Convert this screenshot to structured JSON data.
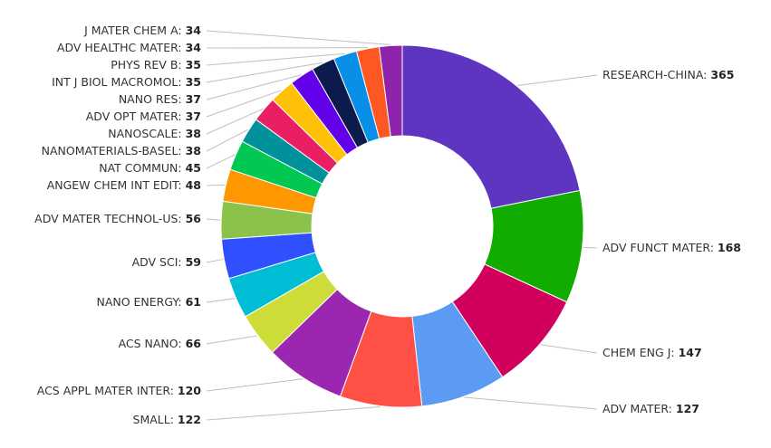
{
  "chart_data": {
    "type": "pie",
    "variant": "donut",
    "label_separator": ": ",
    "slices": [
      {
        "label": "RESEARCH-CHINA",
        "value": 365,
        "color": "#5e35c1"
      },
      {
        "label": "ADV FUNCT MATER",
        "value": 168,
        "color": "#12ab00"
      },
      {
        "label": "CHEM ENG J",
        "value": 147,
        "color": "#d1005d"
      },
      {
        "label": "ADV MATER",
        "value": 127,
        "color": "#5b9bf4"
      },
      {
        "label": "SMALL",
        "value": 122,
        "color": "#ff5045"
      },
      {
        "label": "ACS APPL MATER INTER",
        "value": 120,
        "color": "#9b27b0"
      },
      {
        "label": "ACS NANO",
        "value": 66,
        "color": "#cddc39"
      },
      {
        "label": "NANO ENERGY",
        "value": 61,
        "color": "#00bcd4"
      },
      {
        "label": "ADV SCI",
        "value": 59,
        "color": "#304ffe"
      },
      {
        "label": "ADV MATER TECHNOL-US",
        "value": 56,
        "color": "#8bc34a"
      },
      {
        "label": "ANGEW CHEM INT EDIT",
        "value": 48,
        "color": "#ff9800"
      },
      {
        "label": "NAT COMMUN",
        "value": 45,
        "color": "#00c853"
      },
      {
        "label": "NANOMATERIALS-BASEL",
        "value": 38,
        "color": "#00919b"
      },
      {
        "label": "NANOSCALE",
        "value": 38,
        "color": "#e91e63"
      },
      {
        "label": "ADV OPT MATER",
        "value": 37,
        "color": "#ffc107"
      },
      {
        "label": "NANO RES",
        "value": 37,
        "color": "#6200ea"
      },
      {
        "label": "INT J BIOL MACROMOL",
        "value": 35,
        "color": "#0d1b4c"
      },
      {
        "label": "PHYS REV B",
        "value": 35,
        "color": "#0a8fe8"
      },
      {
        "label": "ADV HEALTHC MATER",
        "value": 34,
        "color": "#ff5722"
      },
      {
        "label": "J MATER CHEM A",
        "value": 34,
        "color": "#8e24aa"
      }
    ],
    "start_angle": "top",
    "direction": "clockwise",
    "legend": "none"
  }
}
